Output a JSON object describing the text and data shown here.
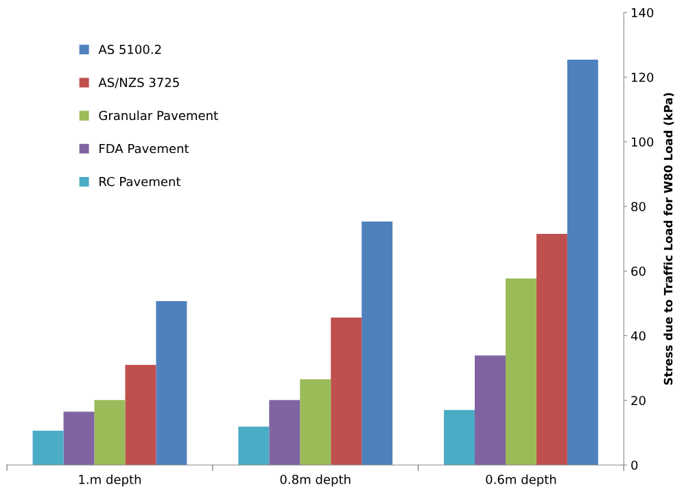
{
  "chart_data": {
    "type": "bar",
    "categories": [
      "1.m depth",
      "0.8m depth",
      "0.6m depth"
    ],
    "ylabel": "Stress due to Traffic Load for W80 Load (kPa)",
    "ylim": [
      0,
      140
    ],
    "yticks": [
      0,
      20,
      40,
      60,
      80,
      100,
      120,
      140
    ],
    "grid": false,
    "legend": "left",
    "series": [
      {
        "name": "AS 5100.2",
        "color": "#4f81bd",
        "values": [
          50.7,
          75.3,
          125.4
        ]
      },
      {
        "name": "AS/NZS 3725",
        "color": "#c0504d",
        "values": [
          31,
          45.6,
          71.5
        ]
      },
      {
        "name": "Granular Pavement",
        "color": "#9bbb59",
        "values": [
          20.1,
          26.5,
          57.7
        ]
      },
      {
        "name": "FDA Pavement",
        "color": "#8064a2",
        "values": [
          16.5,
          20.1,
          33.9
        ]
      },
      {
        "name": "RC Pavement",
        "color": "#4bacc6",
        "values": [
          10.6,
          11.9,
          17
        ]
      }
    ]
  }
}
